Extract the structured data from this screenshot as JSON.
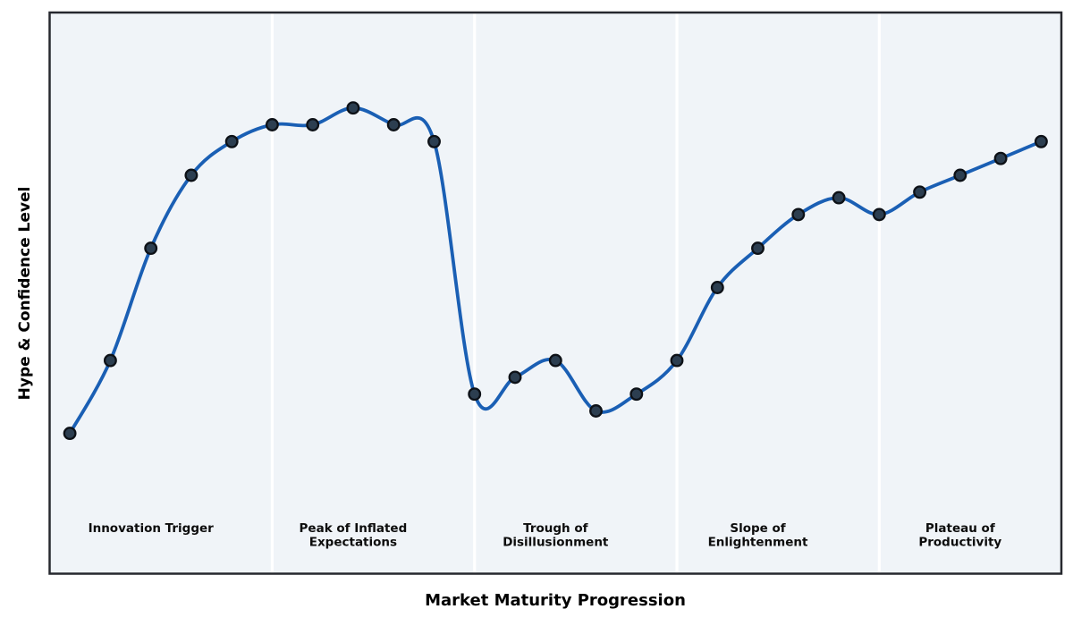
{
  "figure": {
    "title": "",
    "xlabel": "Market Maturity Progression",
    "ylabel": "Hype & Confidence Level"
  },
  "chart_data": {
    "type": "line",
    "title": "",
    "xlabel": "Market Maturity Progression",
    "ylabel": "Hype & Confidence Level",
    "x": [
      0,
      1,
      2,
      3,
      4,
      5,
      6,
      7,
      8,
      9,
      10,
      11,
      12,
      13,
      14,
      15,
      16,
      17,
      18,
      19,
      20,
      21,
      22,
      23,
      24
    ],
    "series": [
      {
        "name": "Hype & Confidence Level",
        "values": [
          25,
          38,
          58,
          71,
          77,
          80,
          80,
          83,
          80,
          77,
          32,
          35,
          38,
          29,
          32,
          38,
          51,
          58,
          64,
          67,
          64,
          68,
          71,
          74,
          77
        ]
      }
    ],
    "xlim": [
      -0.5,
      24.5
    ],
    "ylim": [
      0,
      100
    ],
    "grid": false,
    "legend": "none",
    "smooth": true,
    "marker": "circle",
    "axis_ticks": "none",
    "phase_boundaries_x": [
      5,
      10,
      15,
      20
    ],
    "phases": [
      {
        "name": "innovation-trigger",
        "center_x": 2,
        "label_lines": [
          "Innovation Trigger"
        ]
      },
      {
        "name": "peak-of-inflated-expectations",
        "center_x": 7,
        "label_lines": [
          "Peak of Inflated",
          "Expectations"
        ]
      },
      {
        "name": "trough-of-disillusionment",
        "center_x": 12,
        "label_lines": [
          "Trough of",
          "Disillusionment"
        ]
      },
      {
        "name": "slope-of-enlightenment",
        "center_x": 17,
        "label_lines": [
          "Slope of",
          "Enlightenment"
        ]
      },
      {
        "name": "plateau-of-productivity",
        "center_x": 22,
        "label_lines": [
          "Plateau of",
          "Productivity"
        ]
      }
    ]
  },
  "colors": {
    "curve": "#1a5fb4",
    "marker_fill": "#2c3e50",
    "marker_edge": "#0d1117",
    "plot_background": "#f0f4f8",
    "figure_background": "#ffffff",
    "divider": "#ffffff",
    "border": "#26282e",
    "phase_label_text": "#0c0c0c",
    "axis_label_text": "#000000"
  }
}
